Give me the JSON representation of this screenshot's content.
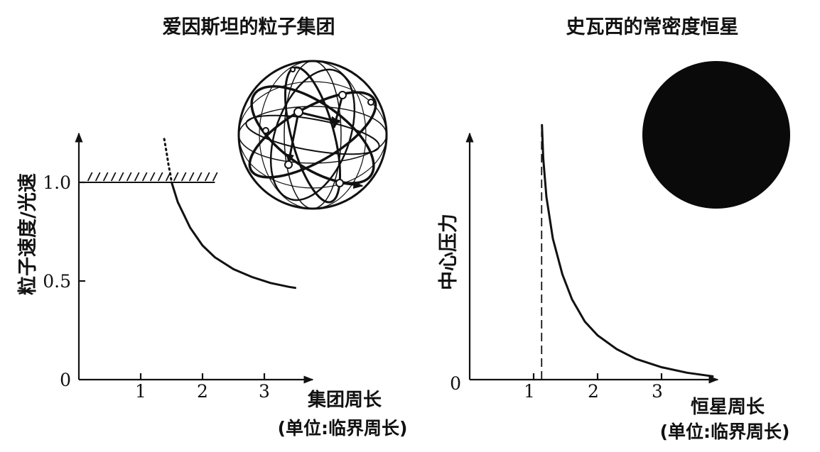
{
  "chart_data": [
    {
      "type": "line",
      "title": "爱因斯坦的粒子集团",
      "ylabel": "粒子速度/光速",
      "xlabel": "集团周长",
      "xlabel_unit": "(单位:临界周长)",
      "xlim": [
        0,
        3.7
      ],
      "ylim": [
        0,
        1.2
      ],
      "x_ticks": [
        "1",
        "2",
        "3"
      ],
      "y_ticks": [
        "0",
        "0.5",
        "1.0"
      ],
      "series": [
        {
          "style": "solid",
          "x": [
            1.5,
            1.6,
            1.8,
            2.0,
            2.2,
            2.5,
            2.8,
            3.1,
            3.4,
            3.5
          ],
          "y": [
            1.0,
            0.9,
            0.77,
            0.68,
            0.62,
            0.56,
            0.52,
            0.49,
            0.47,
            0.465
          ]
        },
        {
          "style": "dotted",
          "x": [
            1.38,
            1.42,
            1.45,
            1.48,
            1.5
          ],
          "y": [
            1.22,
            1.15,
            1.09,
            1.04,
            1.0
          ]
        }
      ],
      "limit_line": {
        "y": 1.0,
        "x_range": [
          0.1,
          2.2
        ],
        "style": "hatched"
      },
      "illustration": "particle-cluster-sphere"
    },
    {
      "type": "line",
      "title": "史瓦西的常密度恒星",
      "ylabel": "中心压力",
      "xlabel": "恒星周长",
      "xlabel_unit": "(单位:临界周长)",
      "xlim": [
        0,
        3.9
      ],
      "x_ticks": [
        "1",
        "2",
        "3"
      ],
      "y_ticks": [
        "0"
      ],
      "series": [
        {
          "style": "solid",
          "x": [
            1.13,
            1.15,
            1.2,
            1.3,
            1.45,
            1.6,
            1.8,
            2.0,
            2.3,
            2.6,
            3.0,
            3.4,
            3.8
          ],
          "y": [
            0.92,
            0.8,
            0.66,
            0.51,
            0.38,
            0.29,
            0.21,
            0.16,
            0.11,
            0.075,
            0.045,
            0.025,
            0.012
          ]
        }
      ],
      "asymptote": {
        "x": 1.125,
        "style": "dashed"
      },
      "illustration": "dark-star-disk"
    }
  ]
}
